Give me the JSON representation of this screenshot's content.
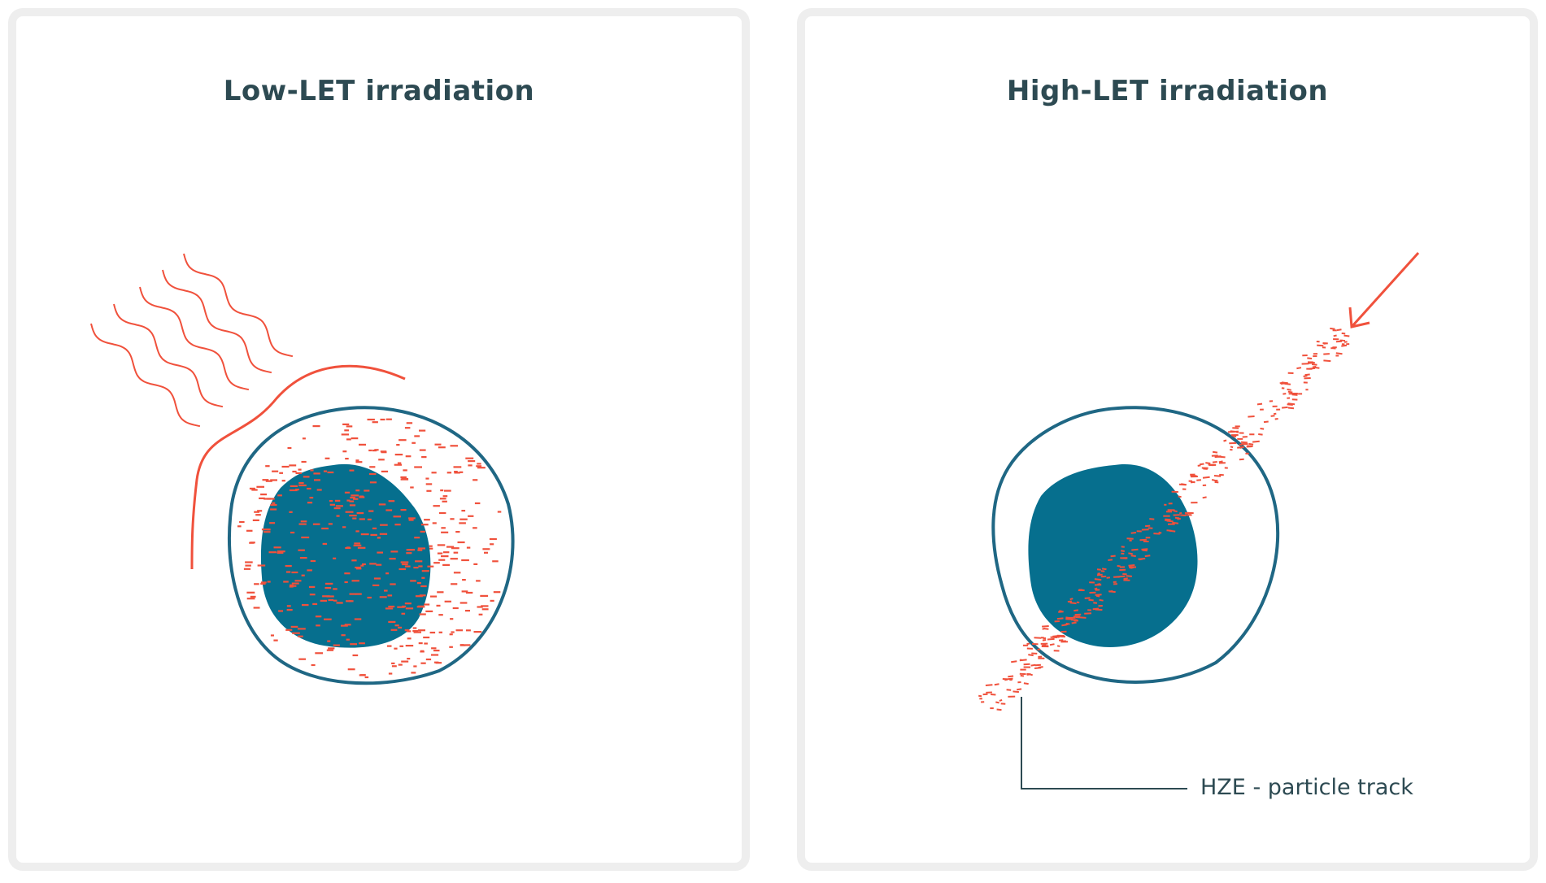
{
  "panels": {
    "left": {
      "title": "Low-LET irradiation"
    },
    "right": {
      "title": "High-LET irradiation"
    }
  },
  "callout": {
    "label": "HZE - particle track"
  },
  "colors": {
    "cell_outline": "#1f6784",
    "nucleus": "#066f8e",
    "radiation": "#f0513c",
    "text": "#2d4a52",
    "panel_border": "#eeeeee"
  }
}
